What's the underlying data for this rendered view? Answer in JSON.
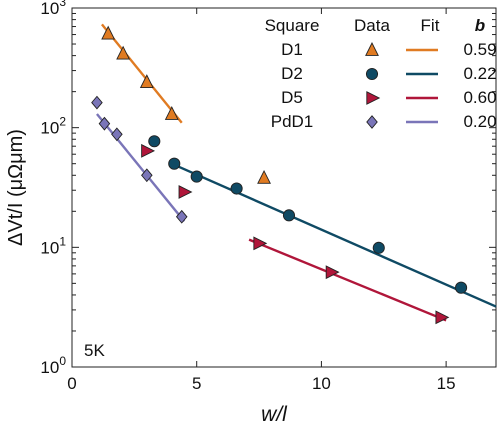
{
  "chart_data": {
    "type": "scatter",
    "xlabel": "w/l",
    "ylabel": "ΔVt/I (μΩμm)",
    "xlim": [
      0,
      17
    ],
    "ylim": [
      1,
      1000
    ],
    "yscale": "log",
    "xticks": [
      0,
      5,
      10,
      15
    ],
    "yticks": [
      1,
      10,
      100,
      1000
    ],
    "yticklabels": [
      "10^0",
      "10^1",
      "10^2",
      "10^3"
    ],
    "annotation": "5K",
    "legend": {
      "placement": "top-right",
      "headers": [
        "Square",
        "Data",
        "Fit",
        "b"
      ]
    },
    "series": [
      {
        "name": "D1",
        "b": "0.59",
        "color": "#e07b22",
        "marker": "triangle-up",
        "points": [
          [
            1.45,
            610
          ],
          [
            2.05,
            415
          ],
          [
            3.0,
            240
          ],
          [
            4.0,
            130
          ],
          [
            7.7,
            38
          ]
        ],
        "fit": [
          [
            1.2,
            730
          ],
          [
            4.4,
            110
          ]
        ]
      },
      {
        "name": "D2",
        "b": "0.22",
        "color": "#0f4a64",
        "marker": "circle",
        "points": [
          [
            3.3,
            77
          ],
          [
            4.1,
            50
          ],
          [
            5.0,
            39
          ],
          [
            6.6,
            31
          ],
          [
            8.7,
            18.5
          ],
          [
            12.3,
            9.9
          ],
          [
            15.6,
            4.6
          ]
        ],
        "fit": [
          [
            4.0,
            50
          ],
          [
            17,
            3.2
          ]
        ]
      },
      {
        "name": "D5",
        "b": "0.60",
        "color": "#b0163a",
        "marker": "triangle-right",
        "points": [
          [
            3.0,
            64
          ],
          [
            4.5,
            29
          ],
          [
            7.5,
            10.8
          ],
          [
            10.4,
            6.2
          ],
          [
            14.8,
            2.6
          ]
        ],
        "fit": [
          [
            7.1,
            11.6
          ],
          [
            15.0,
            2.45
          ]
        ]
      },
      {
        "name": "PdD1",
        "b": "0.20",
        "color": "#7a75b8",
        "marker": "diamond",
        "points": [
          [
            1.0,
            162
          ],
          [
            1.3,
            108
          ],
          [
            1.8,
            88
          ],
          [
            3.0,
            40
          ],
          [
            4.4,
            18
          ]
        ],
        "fit": [
          [
            1.0,
            130
          ],
          [
            4.5,
            16.5
          ]
        ]
      }
    ]
  }
}
